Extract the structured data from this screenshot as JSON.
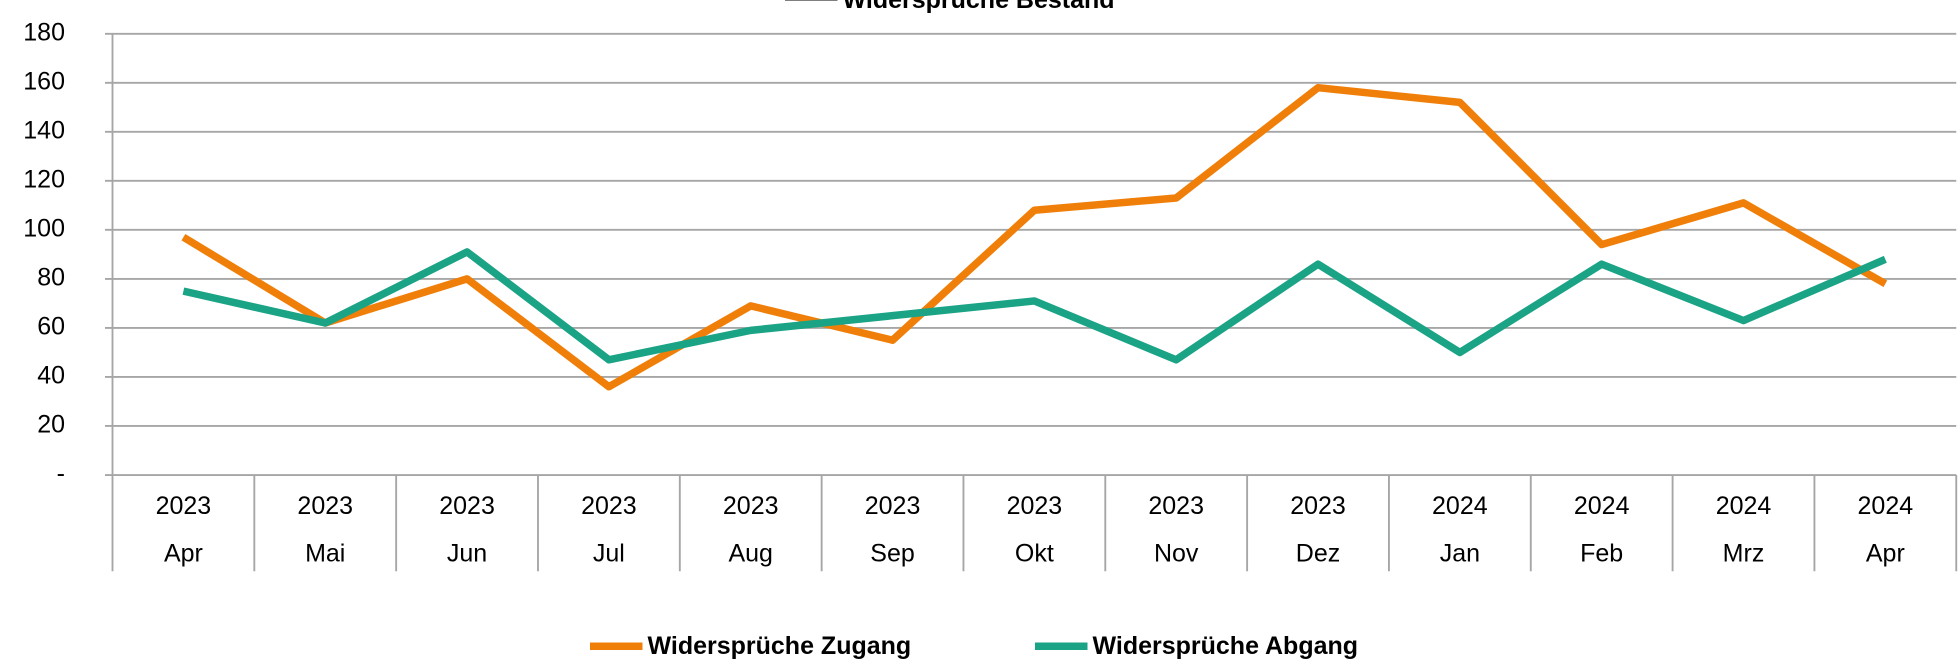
{
  "chart_data": {
    "type": "line",
    "categories": [
      "Apr",
      "Mai",
      "Jun",
      "Jul",
      "Aug",
      "Sep",
      "Okt",
      "Nov",
      "Dez",
      "Jan",
      "Feb",
      "Mrz",
      "Apr"
    ],
    "category_years": [
      "2023",
      "2023",
      "2023",
      "2023",
      "2023",
      "2023",
      "2023",
      "2023",
      "2023",
      "2024",
      "2024",
      "2024",
      "2024"
    ],
    "series": [
      {
        "name": "Widersprüche Zugang",
        "color": "#f07f09",
        "values": [
          97,
          62,
          80,
          36,
          69,
          55,
          108,
          113,
          158,
          152,
          94,
          111,
          78
        ]
      },
      {
        "name": "Widersprüche Abgang",
        "color": "#1aa385",
        "values": [
          75,
          62,
          91,
          47,
          59,
          65,
          71,
          47,
          86,
          50,
          86,
          63,
          88
        ]
      },
      {
        "name": "Widersprüche Bestand",
        "color": "#7f7f7f",
        "values": [
          null,
          null,
          null,
          null,
          null,
          null,
          null,
          null,
          null,
          null,
          null,
          null,
          null
        ]
      }
    ],
    "ylim": [
      0,
      180
    ],
    "yticks": [
      {
        "value": 0,
        "label": "-"
      },
      20,
      40,
      60,
      80,
      100,
      120,
      140,
      160,
      180
    ],
    "grid": true
  }
}
